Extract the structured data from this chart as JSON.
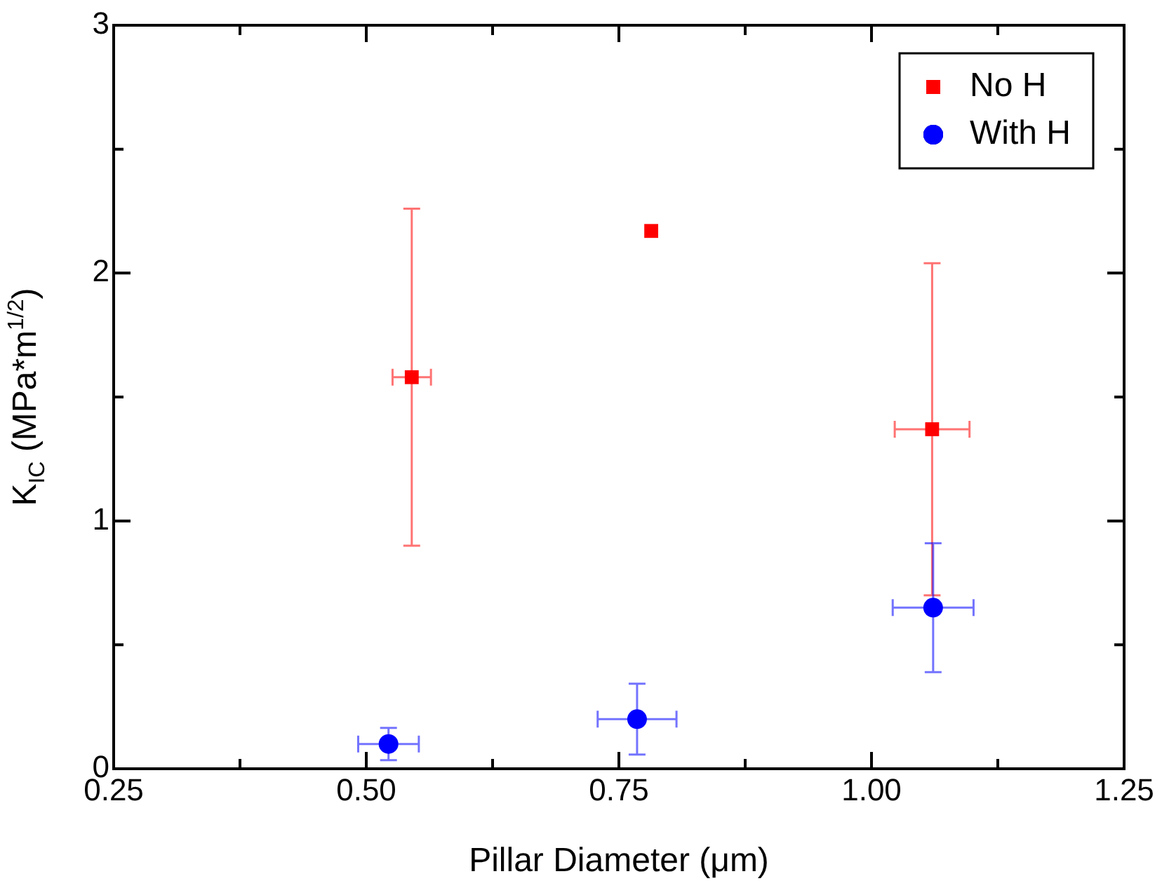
{
  "chart_data": {
    "type": "scatter",
    "xlabel": "Pillar Diameter (μm)",
    "ylabel": "K$_{IC}$ (MPa*m$^{1/2}$)",
    "xlim": [
      0.25,
      1.25
    ],
    "xticks": [
      {
        "value": 0.25,
        "label": "0.25"
      },
      {
        "value": 0.375,
        "label": null
      },
      {
        "value": 0.5,
        "label": "0.50"
      },
      {
        "value": 0.625,
        "label": null
      },
      {
        "value": 0.75,
        "label": "0.75"
      },
      {
        "value": 0.875,
        "label": null
      },
      {
        "value": 1.0,
        "label": "1.00"
      },
      {
        "value": 1.125,
        "label": null
      },
      {
        "value": 1.25,
        "label": "1.25"
      }
    ],
    "ylim": [
      0,
      3
    ],
    "yticks": [
      0,
      {
        "value": 0.5,
        "label": null
      },
      1,
      {
        "value": 1.5,
        "label": null
      },
      2,
      {
        "value": 2.5,
        "label": null
      },
      3
    ],
    "legend": "top right",
    "series": [
      {
        "name": "No H",
        "color": "#ff0000",
        "marker": "square",
        "x": [
          0.545,
          0.782,
          1.06
        ],
        "values": [
          1.58,
          2.17,
          1.37
        ],
        "errors": [
          0.68,
          null,
          0.67
        ],
        "xerrors": [
          0.019,
          null,
          0.037
        ]
      },
      {
        "name": "With H",
        "color": "#0000ff",
        "marker": "circle",
        "x": [
          0.522,
          0.768,
          1.061
        ],
        "values": [
          0.1,
          0.2,
          0.65
        ],
        "errors": [
          0.065,
          0.143,
          0.26
        ],
        "xerrors": [
          0.03,
          0.039,
          0.04
        ]
      }
    ]
  }
}
